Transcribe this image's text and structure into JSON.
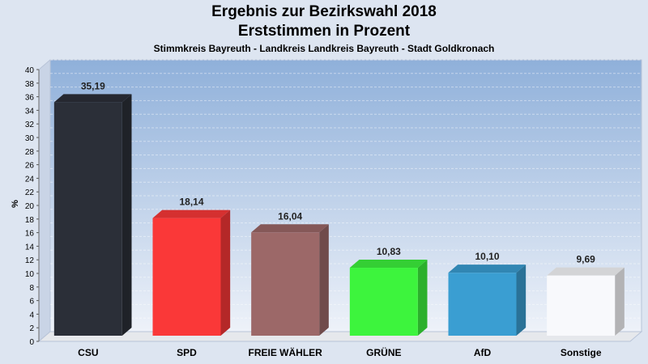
{
  "chart_data": {
    "type": "bar",
    "title": "Ergebnis zur Bezirkswahl 2018",
    "subtitle": "Erststimmen in Prozent",
    "caption": "Stimmkreis Bayreuth - Landkreis Landkreis Bayreuth - Stadt Goldkronach",
    "xlabel": "",
    "ylabel": "%",
    "ylim": [
      0,
      40
    ],
    "ytick_step": 2,
    "grid": true,
    "categories": [
      "CSU",
      "SPD",
      "FREIE WÄHLER",
      "GRÜNE",
      "AfD",
      "Sonstige"
    ],
    "values": [
      35.19,
      18.14,
      16.04,
      10.83,
      10.1,
      9.69
    ],
    "value_labels": [
      "35,19",
      "18,14",
      "16,04",
      "10,83",
      "10,10",
      "9,69"
    ],
    "colors": [
      "#2b2f38",
      "#fa3838",
      "#9c6868",
      "#3df43d",
      "#3a9ed2",
      "#f8f9fc"
    ],
    "background_color": "#dde5f1"
  }
}
